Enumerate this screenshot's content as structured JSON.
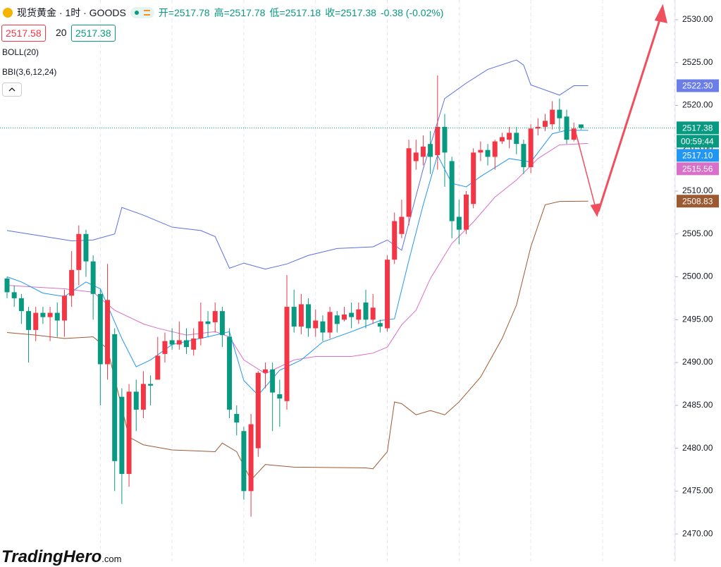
{
  "chart_data": {
    "type": "candlestick",
    "title": "现货黄金 · 1时 · GOODS",
    "ohlc_header": [
      "开=2517.78",
      "高=2517.78",
      "低=2517.18",
      "收=2517.38",
      "-0.38 (-0.02%)"
    ],
    "bid": 2517.58,
    "spread": 20,
    "ask": 2517.38,
    "indicators": [
      "BOLL(20)",
      "BBI(3,6,12,24)"
    ],
    "up_color": "#f23645",
    "down_color": "#089981",
    "ylim": [
      2466.8,
      2532.3
    ],
    "yticks": [
      {
        "value": 2470,
        "label": "2470.00"
      },
      {
        "value": 2475,
        "label": "2475.00"
      },
      {
        "value": 2480,
        "label": "2480.00"
      },
      {
        "value": 2485,
        "label": "2485.00"
      },
      {
        "value": 2490,
        "label": "2490.00"
      },
      {
        "value": 2495,
        "label": "2495.00"
      },
      {
        "value": 2500,
        "label": "2500.00"
      },
      {
        "value": 2505,
        "label": "2505.00"
      },
      {
        "value": 2510,
        "label": "2510.00"
      },
      {
        "value": 2515,
        "label": "2515.00"
      },
      {
        "value": 2520,
        "label": "2520.00"
      },
      {
        "value": 2525,
        "label": "2525.00"
      },
      {
        "value": 2530,
        "label": "2530.00"
      }
    ],
    "grid": true,
    "candles": {
      "open": [
        2499.8,
        2498.2,
        2497.5,
        2496,
        2493.8,
        2495.8,
        2495.3,
        2495.8,
        2494.9,
        2497.8,
        2500.8,
        2505,
        2501.8,
        2498,
        2489.8,
        2493.3,
        2486,
        2477,
        2486.6,
        2484.5,
        2487.5,
        2488,
        2491,
        2492.6,
        2492.1,
        2492.6,
        2491.5,
        2492.8,
        2494.8,
        2494.7,
        2496,
        2493,
        2484,
        2482,
        2475,
        2480,
        2488.8,
        2489.2,
        2486.3,
        2485.5,
        2496.5,
        2494.2,
        2496.8,
        2494,
        2494.8,
        2493.5,
        2495.5,
        2495,
        2495.8,
        2495,
        2497,
        2495,
        2494.6,
        2494,
        2502,
        2505,
        2507,
        2513.5,
        2514,
        2515.5,
        2514.2,
        2517.5,
        2513.5,
        2507,
        2505.5,
        2508.5,
        2514.5,
        2514.8,
        2514,
        2515.8,
        2516,
        2516.8,
        2515.5,
        2512.8,
        2517.3,
        2517.5,
        2517.8,
        2519.5,
        2518.7,
        2516,
        2517.78
      ],
      "high": [
        2500,
        2499,
        2498,
        2496.5,
        2496.5,
        2496.5,
        2496.5,
        2497,
        2498.5,
        2503,
        2506,
        2505.5,
        2502.5,
        2498.5,
        2501.5,
        2494,
        2487,
        2487.5,
        2488,
        2489,
        2488.5,
        2493,
        2493.5,
        2494,
        2494.8,
        2494,
        2494,
        2497,
        2496,
        2497,
        2496.5,
        2494,
        2485,
        2482.5,
        2484,
        2489,
        2490,
        2490,
        2488,
        2500.2,
        2498.5,
        2498,
        2497.5,
        2496.2,
        2495.5,
        2496.5,
        2496,
        2496.5,
        2497,
        2497,
        2498.5,
        2498,
        2495,
        2502.5,
        2507.5,
        2509,
        2516,
        2516,
        2516.5,
        2517,
        2523.5,
        2519,
        2514,
        2509,
        2510,
        2515,
        2515.8,
        2515.5,
        2516,
        2516.8,
        2517.5,
        2517.5,
        2516,
        2517.8,
        2518.5,
        2519,
        2520.5,
        2520.8,
        2519.5,
        2518,
        2517.78
      ],
      "low": [
        2497.5,
        2496.5,
        2494.5,
        2490,
        2492.5,
        2494.5,
        2492.5,
        2493,
        2493,
        2496.5,
        2499,
        2500,
        2495,
        2485,
        2488,
        2475,
        2473.5,
        2475.5,
        2482,
        2483.5,
        2485,
        2488,
        2490,
        2491.5,
        2491.5,
        2491,
        2490.8,
        2492,
        2493,
        2493.5,
        2491.8,
        2483.5,
        2481.5,
        2474,
        2472,
        2479,
        2487,
        2482,
        2482.5,
        2484.5,
        2493.5,
        2493.3,
        2493,
        2493,
        2492.5,
        2492.8,
        2493.5,
        2494.8,
        2494,
        2494.5,
        2494,
        2494.5,
        2493.5,
        2493.6,
        2501.5,
        2504.5,
        2506,
        2512.5,
        2513,
        2512,
        2512.5,
        2510.5,
        2504.5,
        2503.8,
        2505,
        2508,
        2513.5,
        2513,
        2512.5,
        2515.5,
        2515,
        2514.3,
        2512,
        2512.1,
        2516.5,
        2517,
        2517.2,
        2517,
        2515.5,
        2515.8,
        2517.18
      ],
      "close": [
        2498.2,
        2497.5,
        2496,
        2493.8,
        2495.8,
        2495.3,
        2495.8,
        2494.9,
        2497.8,
        2500.8,
        2505,
        2501.8,
        2498,
        2489.8,
        2497.3,
        2478.5,
        2477,
        2486.6,
        2484.5,
        2487.5,
        2487.3,
        2490.8,
        2492.5,
        2492.1,
        2492.6,
        2491.8,
        2492.8,
        2494.8,
        2494.5,
        2496,
        2493.2,
        2484.5,
        2483,
        2475,
        2482.8,
        2488.8,
        2489.2,
        2486.5,
        2485.8,
        2496.5,
        2494.2,
        2496.8,
        2494,
        2494.9,
        2493.5,
        2495.9,
        2494.5,
        2495.6,
        2495.3,
        2496.2,
        2495,
        2496.4,
        2494.2,
        2502,
        2506.5,
        2507,
        2515,
        2514.5,
        2515.2,
        2514,
        2517.5,
        2514.5,
        2506.5,
        2505.5,
        2509.6,
        2514.5,
        2514.8,
        2514,
        2515.8,
        2516.3,
        2516.8,
        2515.5,
        2512.8,
        2517.3,
        2517.5,
        2518.2,
        2519.5,
        2518.5,
        2516,
        2517.3,
        2517.38
      ]
    },
    "lines": [
      {
        "color": "#5b6fe0",
        "x": [
          0,
          3,
          6,
          9,
          12,
          15,
          16,
          19,
          23,
          27,
          29,
          31,
          33,
          36,
          39,
          42,
          46,
          51,
          53,
          55,
          58,
          61,
          64,
          67,
          71,
          72,
          73,
          77,
          79,
          81
        ],
        "values": [
          2505.4,
          2505,
          2504.6,
          2504.2,
          2504.3,
          2505,
          2508.1,
          2507.2,
          2505.8,
          2505.4,
          2504.7,
          2501,
          2501.6,
          2500.9,
          2501.5,
          2502.5,
          2503.3,
          2503.5,
          2504.3,
          2503.1,
          2512.6,
          2520.8,
          2522.6,
          2524.2,
          2525.3,
          2524.7,
          2522.4,
          2521.2,
          2522.3,
          2522.3
        ]
      },
      {
        "color": "#9c5a32",
        "x": [
          0,
          4,
          8,
          12,
          14,
          17,
          19,
          23,
          29,
          30,
          32,
          34,
          36,
          40,
          50,
          51,
          53,
          54,
          55,
          57,
          59,
          61,
          63,
          66,
          69,
          71,
          73,
          75,
          77,
          81
        ],
        "values": [
          2493.5,
          2493.2,
          2492.8,
          2493,
          2491.6,
          2481.3,
          2480.4,
          2479.8,
          2479.6,
          2480.6,
          2479.6,
          2476.3,
          2478.1,
          2477.8,
          2477.7,
          2477.6,
          2479.6,
          2485.4,
          2485.2,
          2483.9,
          2484.4,
          2483.9,
          2485.4,
          2488.3,
          2492.8,
          2496.7,
          2503.5,
          2508.4,
          2508.8,
          2508.83
        ]
      },
      {
        "color": "#d86fc8",
        "x": [
          0,
          4,
          8,
          12,
          15,
          19,
          21,
          25,
          29,
          31,
          33,
          36,
          38,
          40,
          43,
          48,
          51,
          53,
          55,
          57,
          59,
          62,
          65,
          68,
          71,
          74,
          77,
          81
        ],
        "values": [
          2499,
          2498.8,
          2498.6,
          2498.2,
          2496.1,
          2494.5,
          2494,
          2493.2,
          2493.6,
          2493,
          2490.3,
          2488.7,
          2489.5,
          2490.3,
          2490.7,
          2490.7,
          2491.1,
          2491.8,
          2494.4,
          2496.1,
          2499.8,
          2503.9,
          2506.4,
          2509.3,
          2511.3,
          2513.8,
          2515.4,
          2515.56
        ]
      },
      {
        "color": "#2196f3",
        "x": [
          0,
          2,
          5,
          8,
          11,
          13,
          16,
          18,
          20,
          23,
          28,
          31,
          33,
          35,
          38,
          41,
          44,
          48,
          52,
          54,
          56,
          58,
          60,
          62,
          64,
          66,
          70,
          73,
          76,
          78,
          81
        ],
        "values": [
          2500,
          2499.4,
          2498.1,
          2497.7,
          2499.4,
          2498.6,
          2492.8,
          2489.5,
          2490.3,
          2492.1,
          2493,
          2493.6,
          2487.9,
          2486.2,
          2489.1,
          2490.3,
          2492.4,
          2493.6,
          2494.9,
          2495.1,
          2501.9,
          2508.4,
          2514.2,
          2510.9,
          2510.5,
          2511.7,
          2513.8,
          2513.4,
          2516.7,
          2517.1,
          2517.1
        ]
      }
    ],
    "price_tags": [
      {
        "value": 2522.3,
        "label": "2522.30",
        "color": "#6b7de8"
      },
      {
        "value": 2517.38,
        "label": "2517.38",
        "color": "#089981"
      },
      {
        "value": 2517.1,
        "label": "2517.10",
        "color": "#2196f3"
      },
      {
        "value": 2515.56,
        "label": "2515.56",
        "color": "#d86fc8"
      },
      {
        "value": 2508.83,
        "label": "2508.83",
        "color": "#9c5a32"
      }
    ],
    "countdown": "00:59:44",
    "watermark": "TradingHero",
    "watermark_suffix": ".com"
  }
}
